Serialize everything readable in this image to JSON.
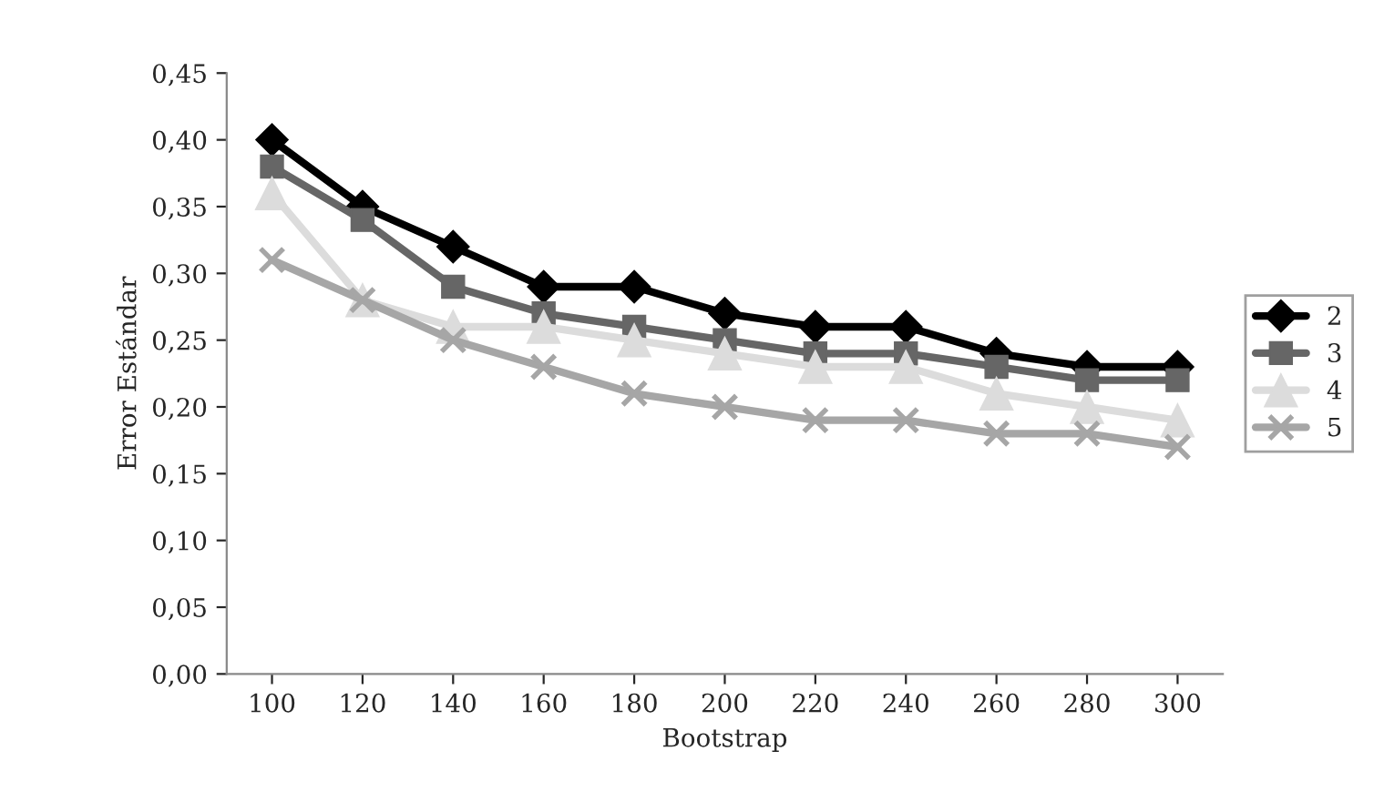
{
  "chart_data": {
    "type": "line",
    "xlabel": "Bootstrap",
    "ylabel": "Error Estándar",
    "categories": [
      "100",
      "120",
      "140",
      "160",
      "180",
      "200",
      "220",
      "240",
      "260",
      "280",
      "300"
    ],
    "series": [
      {
        "name": "2",
        "color": "#000000",
        "marker": "diamond",
        "values": [
          0.4,
          0.35,
          0.32,
          0.29,
          0.29,
          0.27,
          0.26,
          0.26,
          0.24,
          0.23,
          0.23
        ]
      },
      {
        "name": "3",
        "color": "#666666",
        "marker": "square",
        "values": [
          0.38,
          0.34,
          0.29,
          0.27,
          0.26,
          0.25,
          0.24,
          0.24,
          0.23,
          0.22,
          0.22
        ]
      },
      {
        "name": "4",
        "color": "#dcdcdc",
        "marker": "triangle",
        "values": [
          0.36,
          0.28,
          0.26,
          0.26,
          0.25,
          0.24,
          0.23,
          0.23,
          0.21,
          0.2,
          0.19
        ]
      },
      {
        "name": "5",
        "color": "#a6a6a6",
        "marker": "cross",
        "values": [
          0.31,
          0.28,
          0.25,
          0.23,
          0.21,
          0.2,
          0.19,
          0.19,
          0.18,
          0.18,
          0.17
        ]
      }
    ],
    "ylim": [
      0,
      0.45
    ],
    "yticks": [
      {
        "value": 0,
        "label": "0,00"
      },
      {
        "value": 0.05,
        "label": "0,05"
      },
      {
        "value": 0.1,
        "label": "0,10"
      },
      {
        "value": 0.15,
        "label": "0,15"
      },
      {
        "value": 0.2,
        "label": "0,20"
      },
      {
        "value": 0.25,
        "label": "0,25"
      },
      {
        "value": 0.3,
        "label": "0,30"
      },
      {
        "value": 0.35,
        "label": "0,35"
      },
      {
        "value": 0.4,
        "label": "0,40"
      },
      {
        "value": 0.45,
        "label": "0,45"
      }
    ],
    "grid": false,
    "legend": "right",
    "line_style": "solid"
  }
}
